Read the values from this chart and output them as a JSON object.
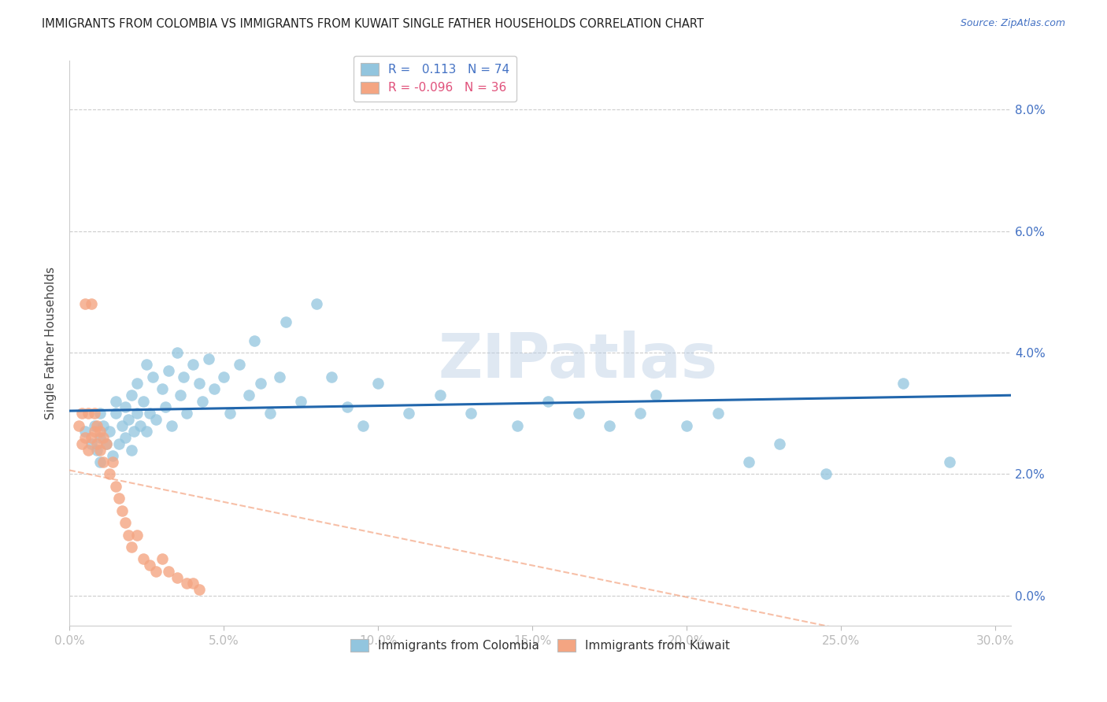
{
  "title": "IMMIGRANTS FROM COLOMBIA VS IMMIGRANTS FROM KUWAIT SINGLE FATHER HOUSEHOLDS CORRELATION CHART",
  "source": "Source: ZipAtlas.com",
  "ylabel": "Single Father Households",
  "xlim": [
    0.0,
    0.305
  ],
  "ylim": [
    -0.005,
    0.088
  ],
  "colombia_color": "#92c5de",
  "kuwait_color": "#f4a582",
  "colombia_R": 0.113,
  "colombia_N": 74,
  "kuwait_R": -0.096,
  "kuwait_N": 36,
  "colombia_line_color": "#2166ac",
  "kuwait_line_color": "#f4a582",
  "watermark": "ZIPatlas",
  "background_color": "#ffffff",
  "grid_color": "#cccccc",
  "colombia_scatter_x": [
    0.005,
    0.007,
    0.008,
    0.009,
    0.01,
    0.01,
    0.01,
    0.011,
    0.012,
    0.013,
    0.014,
    0.015,
    0.015,
    0.016,
    0.017,
    0.018,
    0.018,
    0.019,
    0.02,
    0.02,
    0.021,
    0.022,
    0.022,
    0.023,
    0.024,
    0.025,
    0.025,
    0.026,
    0.027,
    0.028,
    0.03,
    0.031,
    0.032,
    0.033,
    0.035,
    0.036,
    0.037,
    0.038,
    0.04,
    0.042,
    0.043,
    0.045,
    0.047,
    0.05,
    0.052,
    0.055,
    0.058,
    0.06,
    0.062,
    0.065,
    0.068,
    0.07,
    0.075,
    0.08,
    0.085,
    0.09,
    0.095,
    0.1,
    0.11,
    0.12,
    0.13,
    0.145,
    0.155,
    0.165,
    0.175,
    0.185,
    0.19,
    0.2,
    0.21,
    0.22,
    0.23,
    0.245,
    0.27,
    0.285
  ],
  "colombia_scatter_y": [
    0.027,
    0.025,
    0.028,
    0.024,
    0.026,
    0.03,
    0.022,
    0.028,
    0.025,
    0.027,
    0.023,
    0.03,
    0.032,
    0.025,
    0.028,
    0.031,
    0.026,
    0.029,
    0.024,
    0.033,
    0.027,
    0.035,
    0.03,
    0.028,
    0.032,
    0.027,
    0.038,
    0.03,
    0.036,
    0.029,
    0.034,
    0.031,
    0.037,
    0.028,
    0.04,
    0.033,
    0.036,
    0.03,
    0.038,
    0.035,
    0.032,
    0.039,
    0.034,
    0.036,
    0.03,
    0.038,
    0.033,
    0.042,
    0.035,
    0.03,
    0.036,
    0.045,
    0.032,
    0.048,
    0.036,
    0.031,
    0.028,
    0.035,
    0.03,
    0.033,
    0.03,
    0.028,
    0.032,
    0.03,
    0.028,
    0.03,
    0.033,
    0.028,
    0.03,
    0.022,
    0.025,
    0.02,
    0.035,
    0.022
  ],
  "kuwait_scatter_x": [
    0.003,
    0.004,
    0.004,
    0.005,
    0.005,
    0.006,
    0.006,
    0.007,
    0.007,
    0.008,
    0.008,
    0.009,
    0.009,
    0.01,
    0.01,
    0.011,
    0.011,
    0.012,
    0.013,
    0.014,
    0.015,
    0.016,
    0.017,
    0.018,
    0.019,
    0.02,
    0.022,
    0.024,
    0.026,
    0.028,
    0.03,
    0.032,
    0.035,
    0.038,
    0.04,
    0.042
  ],
  "kuwait_scatter_y": [
    0.028,
    0.025,
    0.03,
    0.026,
    0.048,
    0.03,
    0.024,
    0.048,
    0.026,
    0.027,
    0.03,
    0.025,
    0.028,
    0.027,
    0.024,
    0.026,
    0.022,
    0.025,
    0.02,
    0.022,
    0.018,
    0.016,
    0.014,
    0.012,
    0.01,
    0.008,
    0.01,
    0.006,
    0.005,
    0.004,
    0.006,
    0.004,
    0.003,
    0.002,
    0.002,
    0.001
  ]
}
